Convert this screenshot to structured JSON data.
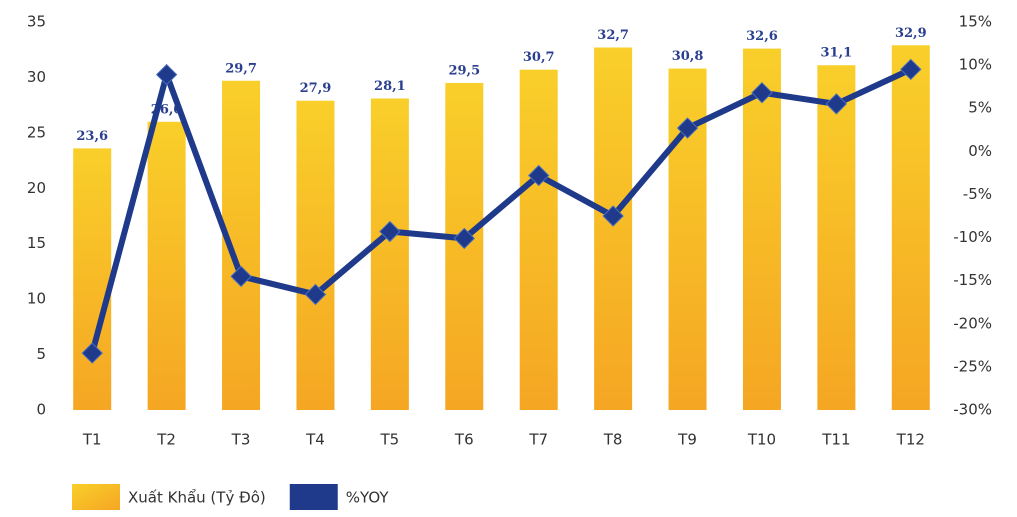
{
  "chart_data": {
    "type": "bar",
    "categories": [
      "T1",
      "T2",
      "T3",
      "T4",
      "T5",
      "T6",
      "T7",
      "T8",
      "T9",
      "T10",
      "T11",
      "T12"
    ],
    "series": [
      {
        "name": "Xuất Khẩu (Tỷ Đô)",
        "type": "bar",
        "color": "#f9cf2a",
        "values": [
          23.6,
          26.0,
          29.7,
          27.9,
          28.1,
          29.5,
          30.7,
          32.7,
          30.8,
          32.6,
          31.1,
          32.9
        ],
        "value_labels": [
          "23,6",
          "26,0",
          "29,7",
          "27,9",
          "28,1",
          "29,5",
          "30,7",
          "32,7",
          "30,8",
          "32,6",
          "31,1",
          "32,9"
        ]
      },
      {
        "name": "%YOY",
        "type": "line",
        "axis": "y2",
        "color": "#1f3a8a",
        "values": [
          -23.4,
          8.9,
          -14.5,
          -16.6,
          -9.3,
          -10.1,
          -2.8,
          -7.5,
          2.7,
          6.8,
          5.5,
          9.5
        ]
      }
    ],
    "ylim": [
      0,
      35
    ],
    "yticks": [
      0,
      5,
      10,
      15,
      20,
      25,
      30,
      35
    ],
    "y2lim": [
      -30,
      15
    ],
    "y2ticks": [
      {
        "value": -30,
        "label": "-30%"
      },
      {
        "value": -25,
        "label": "-25%"
      },
      {
        "value": -20,
        "label": "-20%"
      },
      {
        "value": -15,
        "label": "-15%"
      },
      {
        "value": -10,
        "label": "-10%"
      },
      {
        "value": -5,
        "label": "-5%"
      },
      {
        "value": 0,
        "label": "0%"
      },
      {
        "value": 5,
        "label": "5%"
      },
      {
        "value": 10,
        "label": "10%"
      },
      {
        "value": 15,
        "label": "15%"
      }
    ]
  }
}
